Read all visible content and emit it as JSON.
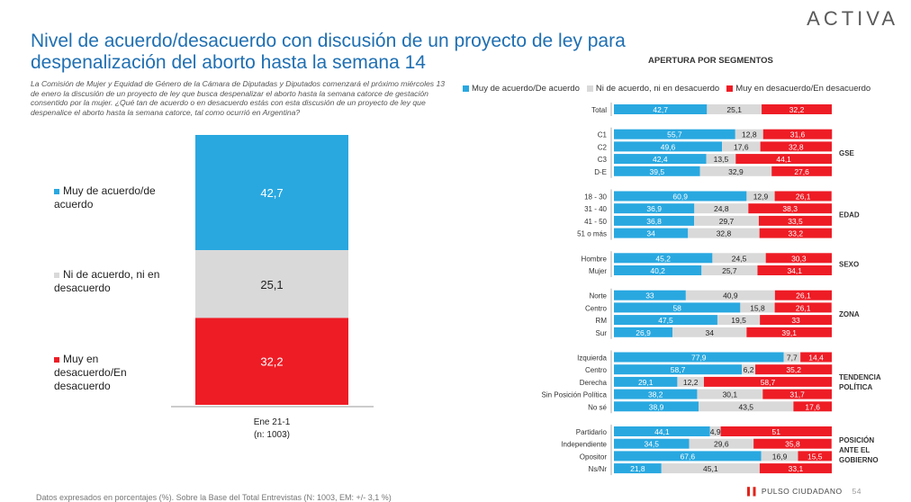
{
  "brand": "ACTIVA",
  "title": "Nivel de acuerdo/desacuerdo con discusión de un proyecto de ley para despenalización del aborto hasta la semana 14",
  "intro": "La Comisión de Mujer y Equidad de Género de la Cámara de Diputadas y Diputados comenzará el próximo miércoles 13 de enero la discusión de un proyecto de ley que busca despenalizar el aborto hasta la semana catorce de gestación consentido por la mujer. ¿Qué tan de acuerdo o en desacuerdo estás con esta discusión de un proyecto de ley que despenalice el aborto hasta la semana catorce, tal como ocurrió en Argentina?",
  "segments_title": "APERTURA POR SEGMENTOS",
  "footnote": "Datos expresados en porcentajes (%). Sobre la Base del Total Entrevistas (N: 1003, EM: +/- 3,1 %)",
  "footer_brand": "PULSO CIUDADANO",
  "page_number": "54",
  "colors": {
    "agree": "#29a8e0",
    "neutral": "#d9d9d9",
    "disagree": "#ee1c25"
  },
  "chart_data": [
    {
      "type": "bar",
      "stacked": true,
      "categories": [
        "Ene 21-1"
      ],
      "category_sublabel": "(n: 1003)",
      "series": [
        {
          "name": "Muy de acuerdo/de acuerdo",
          "values": [
            42.7
          ],
          "labels": [
            "42,7"
          ]
        },
        {
          "name": "Ni de acuerdo, ni en desacuerdo",
          "values": [
            25.1
          ],
          "labels": [
            "25,1"
          ]
        },
        {
          "name": "Muy en desacuerdo/En desacuerdo",
          "values": [
            32.2
          ],
          "labels": [
            "32,2"
          ]
        }
      ],
      "ylim": [
        0,
        100
      ]
    },
    {
      "type": "bar",
      "orientation": "horizontal",
      "stacked": true,
      "legend": [
        "Muy de acuerdo/De acuerdo",
        "Ni de acuerdo, ni en desacuerdo",
        "Muy en desacuerdo/En desacuerdo"
      ],
      "legend_position": "top",
      "groups": [
        {
          "name": "",
          "rows": [
            {
              "label": "Total",
              "values": [
                42.7,
                25.1,
                32.2
              ],
              "labels": [
                "42,7",
                "25,1",
                "32,2"
              ]
            }
          ]
        },
        {
          "name": "GSE",
          "rows": [
            {
              "label": "C1",
              "values": [
                55.7,
                12.8,
                31.6
              ],
              "labels": [
                "55,7",
                "12,8",
                "31,6"
              ]
            },
            {
              "label": "C2",
              "values": [
                49.6,
                17.6,
                32.8
              ],
              "labels": [
                "49,6",
                "17,6",
                "32,8"
              ]
            },
            {
              "label": "C3",
              "values": [
                42.4,
                13.5,
                44.1
              ],
              "labels": [
                "42,4",
                "13,5",
                "44,1"
              ]
            },
            {
              "label": "D-E",
              "values": [
                39.5,
                32.9,
                27.6
              ],
              "labels": [
                "39,5",
                "32,9",
                "27,6"
              ]
            }
          ]
        },
        {
          "name": "EDAD",
          "rows": [
            {
              "label": "18 - 30",
              "values": [
                60.9,
                12.9,
                26.1
              ],
              "labels": [
                "60,9",
                "12,9",
                "26,1"
              ]
            },
            {
              "label": "31 - 40",
              "values": [
                36.9,
                24.8,
                38.3
              ],
              "labels": [
                "36,9",
                "24,8",
                "38,3"
              ]
            },
            {
              "label": "41 - 50",
              "values": [
                36.8,
                29.7,
                33.5
              ],
              "labels": [
                "36,8",
                "29,7",
                "33,5"
              ]
            },
            {
              "label": "51 o más",
              "values": [
                34,
                32.8,
                33.2
              ],
              "labels": [
                "34",
                "32,8",
                "33,2"
              ]
            }
          ]
        },
        {
          "name": "SEXO",
          "rows": [
            {
              "label": "Hombre",
              "values": [
                45.2,
                24.5,
                30.3
              ],
              "labels": [
                "45,2",
                "24,5",
                "30,3"
              ]
            },
            {
              "label": "Mujer",
              "values": [
                40.2,
                25.7,
                34.1
              ],
              "labels": [
                "40,2",
                "25,7",
                "34,1"
              ]
            }
          ]
        },
        {
          "name": "ZONA",
          "rows": [
            {
              "label": "Norte",
              "values": [
                33,
                40.9,
                26.1
              ],
              "labels": [
                "33",
                "40,9",
                "26,1"
              ]
            },
            {
              "label": "Centro",
              "values": [
                58,
                15.8,
                26.1
              ],
              "labels": [
                "58",
                "15,8",
                "26,1"
              ]
            },
            {
              "label": "RM",
              "values": [
                47.5,
                19.5,
                33
              ],
              "labels": [
                "47,5",
                "19,5",
                "33"
              ]
            },
            {
              "label": "Sur",
              "values": [
                26.9,
                34,
                39.1
              ],
              "labels": [
                "26,9",
                "34",
                "39,1"
              ]
            }
          ]
        },
        {
          "name": "TENDENCIA POLÍTICA",
          "name_lines": [
            "TENDENCIA",
            "POLÍTICA"
          ],
          "rows": [
            {
              "label": "Izquierda",
              "values": [
                77.9,
                7.7,
                14.4
              ],
              "labels": [
                "77,9",
                "7,7",
                "14,4"
              ]
            },
            {
              "label": "Centro",
              "values": [
                58.7,
                6.2,
                35.2
              ],
              "labels": [
                "58,7",
                "6,2",
                "35,2"
              ]
            },
            {
              "label": "Derecha",
              "values": [
                29.1,
                12.2,
                58.7
              ],
              "labels": [
                "29,1",
                "12,2",
                "58,7"
              ]
            },
            {
              "label": "Sin Posición Política",
              "values": [
                38.2,
                30.1,
                31.7
              ],
              "labels": [
                "38,2",
                "30,1",
                "31,7"
              ]
            },
            {
              "label": "No sé",
              "values": [
                38.9,
                43.5,
                17.6
              ],
              "labels": [
                "38,9",
                "43,5",
                "17,6"
              ]
            }
          ]
        },
        {
          "name": "POSICIÓN ANTE EL GOBIERNO",
          "name_lines": [
            "POSICIÓN",
            "ANTE EL",
            "GOBIERNO"
          ],
          "rows": [
            {
              "label": "Partidario",
              "values": [
                44.1,
                4.9,
                51
              ],
              "labels": [
                "44,1",
                "4,9",
                "51"
              ]
            },
            {
              "label": "Independiente",
              "values": [
                34.5,
                29.6,
                35.8
              ],
              "labels": [
                "34,5",
                "29,6",
                "35,8"
              ]
            },
            {
              "label": "Opositor",
              "values": [
                67.6,
                16.9,
                15.5
              ],
              "labels": [
                "67,6",
                "16,9",
                "15,5"
              ]
            },
            {
              "label": "Ns/Nr",
              "values": [
                21.8,
                45.1,
                33.1
              ],
              "labels": [
                "21,8",
                "45,1",
                "33,1"
              ]
            }
          ]
        }
      ]
    }
  ]
}
